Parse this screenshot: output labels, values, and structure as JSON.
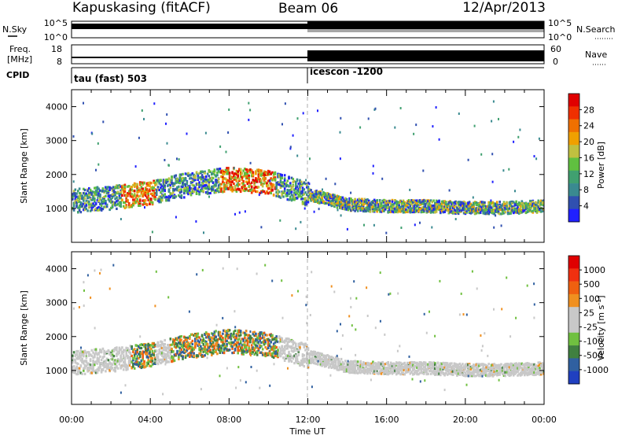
{
  "header": {
    "site": "Kapuskasing (fitACF)",
    "beam": "Beam 06",
    "date": "12/Apr/2013"
  },
  "top_strips": {
    "nsky_label": "N.Sky",
    "nsearch_label": "N.Search",
    "noise_ticks": [
      "10^5",
      "10^0"
    ],
    "freq_label_1": "Freq.",
    "freq_label_2": "[MHz]",
    "freq_ticks": [
      "18",
      "8"
    ],
    "nave_label": "Nave",
    "nave_ticks": [
      "60",
      "0"
    ],
    "cpid_label": "CPID",
    "cpid_segments": [
      {
        "label": "tau (fast) 503",
        "start_hour": 0
      },
      {
        "label": "icescon -1200",
        "start_hour": 12
      }
    ]
  },
  "time_axis": {
    "title": "Time UT",
    "range_hours": [
      0,
      24
    ],
    "tick_hours": [
      0,
      4,
      8,
      12,
      16,
      20,
      24
    ],
    "tick_labels": [
      "00:00",
      "04:00",
      "08:00",
      "12:00",
      "16:00",
      "20:00",
      "00:00"
    ]
  },
  "chart_data": [
    {
      "type": "heatmap",
      "ylabel": "Slant Range [km]",
      "ylim": [
        0,
        4500
      ],
      "yticks": [
        1000,
        2000,
        3000,
        4000
      ],
      "colorbar_label": "Power [dB]",
      "colorbar_ticks": [
        "4",
        "8",
        "12",
        "16",
        "20",
        "24",
        "28"
      ],
      "colorbar_colors": [
        "#2020ff",
        "#3050b0",
        "#3a8a90",
        "#40a070",
        "#60c040",
        "#c0c040",
        "#f0a000",
        "#f07000",
        "#f03000",
        "#e00000"
      ],
      "echo_bands": [
        {
          "x_hours": [
            0,
            2,
            4,
            6,
            8,
            10,
            12,
            14,
            16,
            18,
            20,
            22,
            24
          ],
          "center_km": [
            1250,
            1350,
            1500,
            1750,
            1900,
            1800,
            1450,
            1150,
            1100,
            1100,
            1050,
            1050,
            1100
          ]
        }
      ]
    },
    {
      "type": "heatmap",
      "ylabel": "Slant Range [km]",
      "ylim": [
        0,
        4500
      ],
      "yticks": [
        1000,
        2000,
        3000,
        4000
      ],
      "colorbar_label": "Velocity [m s^-1]",
      "colorbar_ticks": [
        "1000",
        "500",
        "100",
        "25",
        "-25",
        "-100",
        "-500",
        "-1000"
      ],
      "colorbar_colors": [
        "#2040c0",
        "#3060a0",
        "#408040",
        "#70c040",
        "#c8c8c8",
        "#c8c8c8",
        "#f09020",
        "#f06010",
        "#f03010",
        "#e00000"
      ],
      "echo_bands": [
        {
          "x_hours": [
            0,
            2,
            4,
            6,
            8,
            10,
            12,
            14,
            16,
            18,
            20,
            22,
            24
          ],
          "center_km": [
            1250,
            1350,
            1500,
            1750,
            1900,
            1800,
            1450,
            1150,
            1100,
            1100,
            1050,
            1050,
            1100
          ]
        }
      ]
    }
  ]
}
